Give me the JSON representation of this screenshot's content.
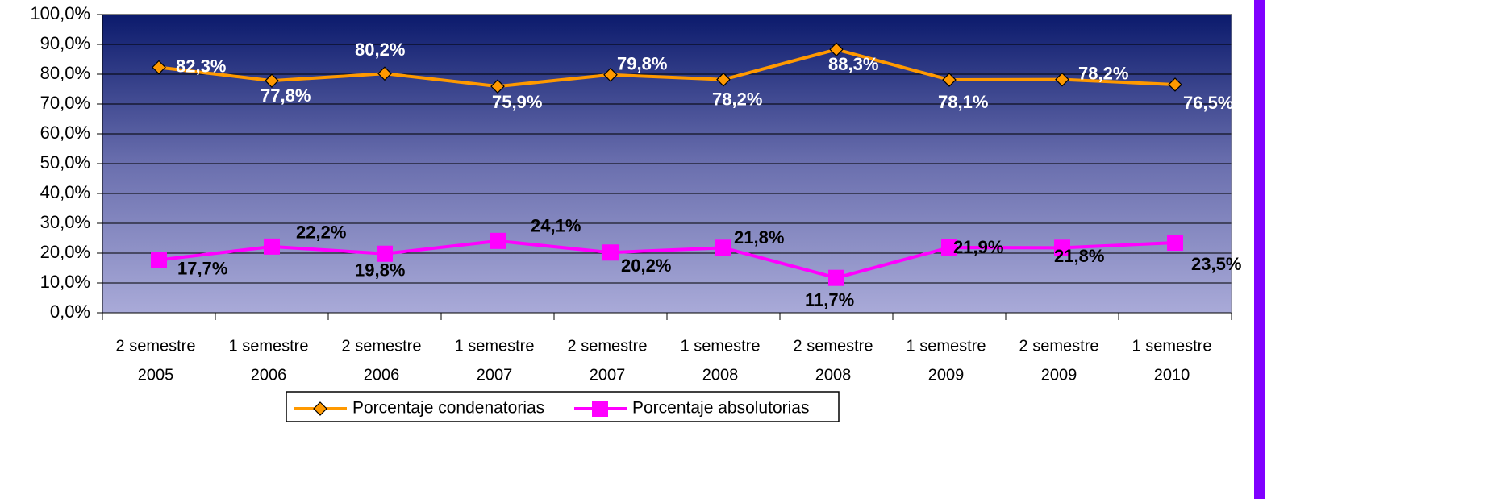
{
  "chart_data": {
    "type": "line",
    "categories": [
      [
        "2 semestre",
        "2005"
      ],
      [
        "1 semestre",
        "2006"
      ],
      [
        "2 semestre",
        "2006"
      ],
      [
        "1 semestre",
        "2007"
      ],
      [
        "2 semestre",
        "2007"
      ],
      [
        "1 semestre",
        "2008"
      ],
      [
        "2 semestre",
        "2008"
      ],
      [
        "1 semestre",
        "2009"
      ],
      [
        "2 semestre",
        "2009"
      ],
      [
        "1 semestre",
        "2010"
      ]
    ],
    "series": [
      {
        "name": "Porcentaje condenatorias",
        "color": "#ff9900",
        "marker": "diamond",
        "label_color": "#ffffff",
        "values": [
          82.3,
          77.8,
          80.2,
          75.9,
          79.8,
          78.2,
          88.3,
          78.1,
          78.2,
          76.5
        ],
        "value_labels": [
          "82,3%",
          "77,8%",
          "80,2%",
          "75,9%",
          "79,8%",
          "78,2%",
          "88,3%",
          "78,1%",
          "78,2%",
          "76,5%"
        ]
      },
      {
        "name": "Porcentaje absolutorias",
        "color": "#ff00ff",
        "marker": "square",
        "label_color": "#000000",
        "values": [
          17.7,
          22.2,
          19.8,
          24.1,
          20.2,
          21.8,
          11.7,
          21.9,
          21.8,
          23.5
        ],
        "value_labels": [
          "17,7%",
          "22,2%",
          "19,8%",
          "24,1%",
          "20,2%",
          "21,8%",
          "11,7%",
          "21,9%",
          "21,8%",
          "23,5%"
        ]
      }
    ],
    "ylim": [
      0,
      100
    ],
    "yticks": [
      {
        "value": 0,
        "label": "0,0%"
      },
      {
        "value": 10,
        "label": "10,0%"
      },
      {
        "value": 20,
        "label": "20,0%"
      },
      {
        "value": 30,
        "label": "30,0%"
      },
      {
        "value": 40,
        "label": "40,0%"
      },
      {
        "value": 50,
        "label": "50,0%"
      },
      {
        "value": 60,
        "label": "60,0%"
      },
      {
        "value": 70,
        "label": "70,0%"
      },
      {
        "value": 80,
        "label": "80,0%"
      },
      {
        "value": 90,
        "label": "90,0%"
      },
      {
        "value": 100,
        "label": "100,0%"
      }
    ],
    "grid": true,
    "legend": "bottom"
  }
}
